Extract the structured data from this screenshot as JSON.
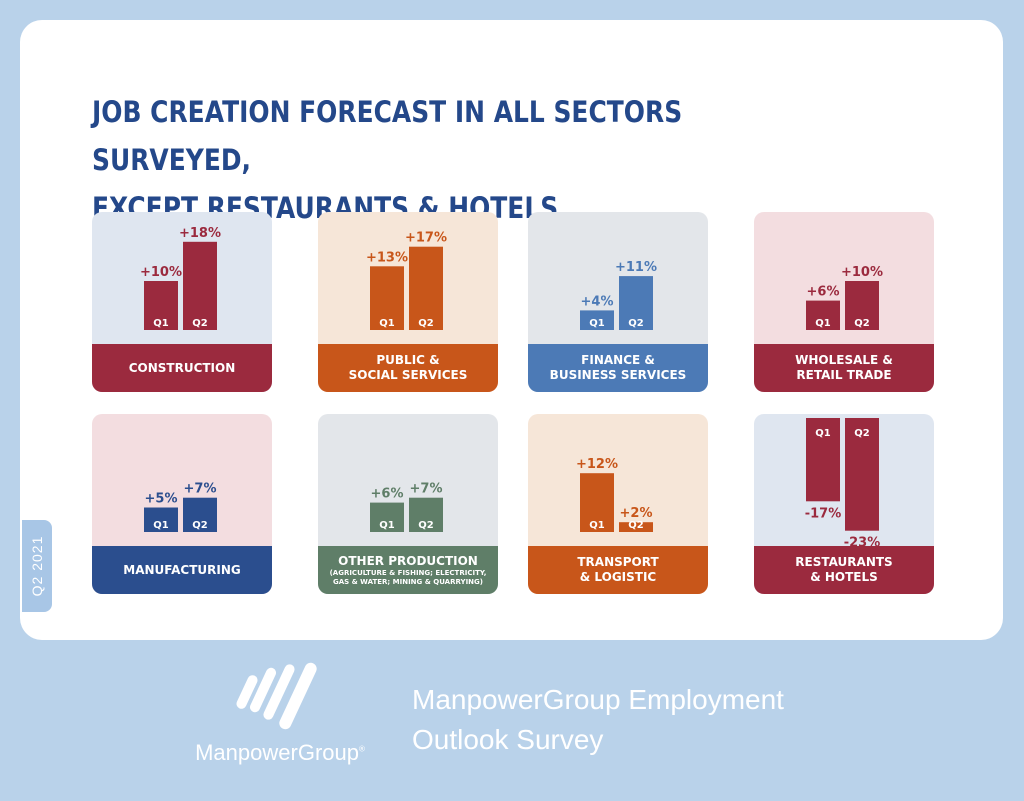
{
  "title": {
    "line1": "JOB CREATION FORECAST IN ALL SECTORS SURVEYED,",
    "line2": "EXCEPT RESTAURANTS & HOTELS"
  },
  "side_badge": "Q2 2021",
  "footer": {
    "brand": "ManpowerGroup",
    "brand_mark": "®",
    "survey_line1": "ManpowerGroup Employment",
    "survey_line2": "Outlook Survey"
  },
  "colors": {
    "page_bg": "#b9d2ea",
    "title": "#24488a",
    "dark_red": "#9b2a3e",
    "orange": "#c8561a",
    "blue": "#4c7ab6",
    "navy": "#2b4e8e",
    "green": "#5f7e68"
  },
  "chart_data": {
    "type": "bar",
    "categories_series": [
      "Q1",
      "Q2"
    ],
    "panels": [
      {
        "label": [
          "CONSTRUCTION"
        ],
        "values": [
          10,
          18
        ],
        "value_labels": [
          "+10%",
          "+18%"
        ],
        "color": "#9b2a3e",
        "bg": "#dfe6f0"
      },
      {
        "label": [
          "PUBLIC &",
          "SOCIAL SERVICES"
        ],
        "values": [
          13,
          17
        ],
        "value_labels": [
          "+13%",
          "+17%"
        ],
        "color": "#c8561a",
        "bg": "#f6e6d8"
      },
      {
        "label": [
          "FINANCE &",
          "BUSINESS SERVICES"
        ],
        "values": [
          4,
          11
        ],
        "value_labels": [
          "+4%",
          "+11%"
        ],
        "color": "#4c7ab6",
        "bg": "#e3e6ea"
      },
      {
        "label": [
          "WHOLESALE &",
          "RETAIL TRADE"
        ],
        "values": [
          6,
          10
        ],
        "value_labels": [
          "+6%",
          "+10%"
        ],
        "color": "#9b2a3e",
        "bg": "#f3dde0"
      },
      {
        "label": [
          "MANUFACTURING"
        ],
        "values": [
          5,
          7
        ],
        "value_labels": [
          "+5%",
          "+7%"
        ],
        "color": "#2b4e8e",
        "bg": "#f3dde0"
      },
      {
        "label": [
          "OTHER PRODUCTION"
        ],
        "sub": [
          "(AGRICULTURE & FISHING; ELECTRICITY,",
          "GAS & WATER; MINING & QUARRYING)"
        ],
        "values": [
          6,
          7
        ],
        "value_labels": [
          "+6%",
          "+7%"
        ],
        "color": "#5f7e68",
        "bg": "#e3e6ea"
      },
      {
        "label": [
          "TRANSPORT",
          "& LOGISTIC"
        ],
        "values": [
          12,
          2
        ],
        "value_labels": [
          "+12%",
          "+2%"
        ],
        "color": "#c8561a",
        "bg": "#f6e6d8"
      },
      {
        "label": [
          "RESTAURANTS",
          "& HOTELS"
        ],
        "values": [
          -17,
          -23
        ],
        "value_labels": [
          "-17%",
          "-23%"
        ],
        "color": "#9b2a3e",
        "bg": "#dfe6f0"
      }
    ]
  }
}
